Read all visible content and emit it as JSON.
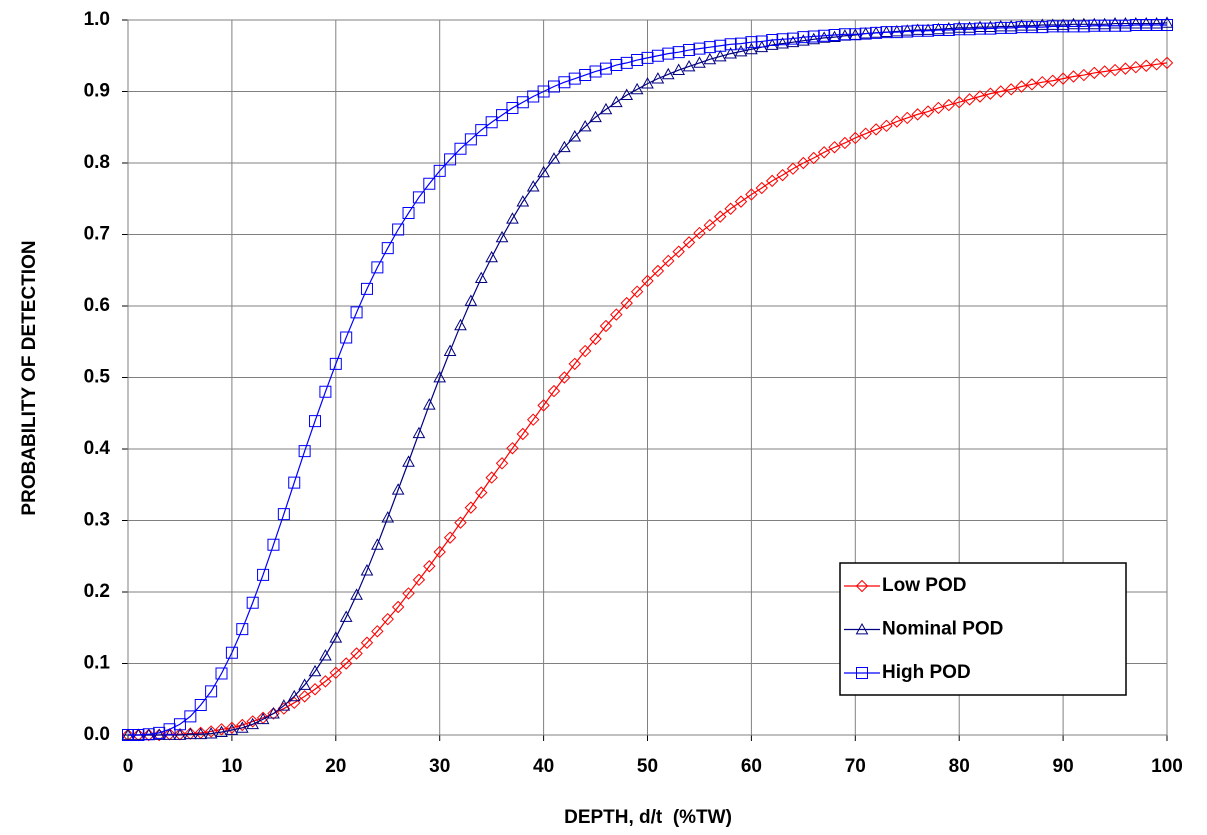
{
  "chart_data": {
    "type": "line",
    "x_label": "DEPTH, d/t  (%TW)",
    "y_label": "PROBABILITY OF DETECTION",
    "x": [
      0,
      1,
      2,
      3,
      4,
      5,
      6,
      7,
      8,
      9,
      10,
      11,
      12,
      13,
      14,
      15,
      16,
      17,
      18,
      19,
      20,
      21,
      22,
      23,
      24,
      25,
      26,
      27,
      28,
      29,
      30,
      31,
      32,
      33,
      34,
      35,
      36,
      37,
      38,
      39,
      40,
      41,
      42,
      43,
      44,
      45,
      46,
      47,
      48,
      49,
      50,
      51,
      52,
      53,
      54,
      55,
      56,
      57,
      58,
      59,
      60,
      61,
      62,
      63,
      64,
      65,
      66,
      67,
      68,
      69,
      70,
      71,
      72,
      73,
      74,
      75,
      76,
      77,
      78,
      79,
      80,
      81,
      82,
      83,
      84,
      85,
      86,
      87,
      88,
      89,
      90,
      91,
      92,
      93,
      94,
      95,
      96,
      97,
      98,
      99,
      100
    ],
    "series": [
      {
        "name": "Low POD",
        "color": "#ff0000",
        "marker": "diamond",
        "values": [
          0,
          0,
          0,
          0,
          0.001,
          0.001,
          0.002,
          0.003,
          0.005,
          0.008,
          0.01,
          0.014,
          0.019,
          0.024,
          0.03,
          0.037,
          0.045,
          0.054,
          0.064,
          0.075,
          0.087,
          0.1,
          0.114,
          0.129,
          0.145,
          0.162,
          0.179,
          0.198,
          0.217,
          0.236,
          0.256,
          0.276,
          0.297,
          0.318,
          0.339,
          0.36,
          0.38,
          0.401,
          0.421,
          0.441,
          0.461,
          0.481,
          0.5,
          0.519,
          0.537,
          0.554,
          0.572,
          0.588,
          0.604,
          0.62,
          0.635,
          0.649,
          0.663,
          0.676,
          0.689,
          0.702,
          0.713,
          0.725,
          0.736,
          0.746,
          0.756,
          0.765,
          0.775,
          0.783,
          0.792,
          0.8,
          0.807,
          0.815,
          0.822,
          0.828,
          0.835,
          0.841,
          0.847,
          0.852,
          0.858,
          0.863,
          0.868,
          0.872,
          0.877,
          0.881,
          0.885,
          0.889,
          0.893,
          0.897,
          0.9,
          0.903,
          0.907,
          0.91,
          0.913,
          0.915,
          0.918,
          0.921,
          0.923,
          0.926,
          0.928,
          0.93,
          0.932,
          0.934,
          0.936,
          0.938,
          0.94
        ]
      },
      {
        "name": "Nominal POD",
        "color": "#000080",
        "marker": "triangle",
        "values": [
          0,
          0,
          0,
          0,
          0,
          0,
          0.001,
          0.001,
          0.002,
          0.004,
          0.007,
          0.01,
          0.015,
          0.022,
          0.03,
          0.041,
          0.054,
          0.07,
          0.089,
          0.111,
          0.136,
          0.165,
          0.196,
          0.23,
          0.266,
          0.304,
          0.343,
          0.382,
          0.422,
          0.462,
          0.5,
          0.537,
          0.573,
          0.607,
          0.639,
          0.668,
          0.696,
          0.722,
          0.746,
          0.767,
          0.787,
          0.806,
          0.822,
          0.837,
          0.851,
          0.864,
          0.875,
          0.885,
          0.895,
          0.903,
          0.911,
          0.918,
          0.924,
          0.93,
          0.935,
          0.94,
          0.945,
          0.949,
          0.953,
          0.956,
          0.959,
          0.962,
          0.965,
          0.967,
          0.969,
          0.971,
          0.973,
          0.975,
          0.976,
          0.978,
          0.979,
          0.981,
          0.982,
          0.983,
          0.984,
          0.985,
          0.986,
          0.986,
          0.987,
          0.988,
          0.989,
          0.989,
          0.99,
          0.99,
          0.991,
          0.991,
          0.992,
          0.992,
          0.993,
          0.993,
          0.993,
          0.994,
          0.994,
          0.994,
          0.994,
          0.995,
          0.995,
          0.995,
          0.995,
          0.995,
          0.996
        ]
      },
      {
        "name": "High POD",
        "color": "#0000ff",
        "marker": "square",
        "values": [
          0,
          0,
          0.001,
          0.003,
          0.008,
          0.015,
          0.026,
          0.042,
          0.061,
          0.086,
          0.115,
          0.148,
          0.185,
          0.224,
          0.266,
          0.309,
          0.353,
          0.397,
          0.439,
          0.48,
          0.519,
          0.556,
          0.591,
          0.624,
          0.654,
          0.681,
          0.707,
          0.73,
          0.752,
          0.771,
          0.789,
          0.805,
          0.82,
          0.833,
          0.846,
          0.857,
          0.867,
          0.877,
          0.885,
          0.893,
          0.9,
          0.907,
          0.913,
          0.918,
          0.923,
          0.928,
          0.932,
          0.937,
          0.94,
          0.944,
          0.947,
          0.95,
          0.953,
          0.955,
          0.958,
          0.96,
          0.962,
          0.964,
          0.966,
          0.967,
          0.969,
          0.97,
          0.972,
          0.973,
          0.974,
          0.976,
          0.977,
          0.978,
          0.979,
          0.98,
          0.98,
          0.981,
          0.982,
          0.983,
          0.983,
          0.984,
          0.985,
          0.985,
          0.986,
          0.986,
          0.987,
          0.987,
          0.988,
          0.988,
          0.989,
          0.989,
          0.99,
          0.99,
          0.99,
          0.991,
          0.991,
          0.991,
          0.991,
          0.992,
          0.992,
          0.992,
          0.992,
          0.993,
          0.993,
          0.993,
          0.993
        ]
      }
    ],
    "xlim": [
      0,
      100
    ],
    "xticks": [
      0,
      10,
      20,
      30,
      40,
      50,
      60,
      70,
      80,
      90,
      100
    ],
    "ylim": [
      0,
      1
    ],
    "yticks": [
      {
        "value": 0,
        "label": "0.0"
      },
      0.1,
      0.2,
      0.3,
      0.4,
      0.5,
      0.6,
      0.7,
      0.8,
      0.9,
      {
        "value": 1,
        "label": "1.0"
      }
    ],
    "grid": true,
    "legend": "lower right"
  }
}
